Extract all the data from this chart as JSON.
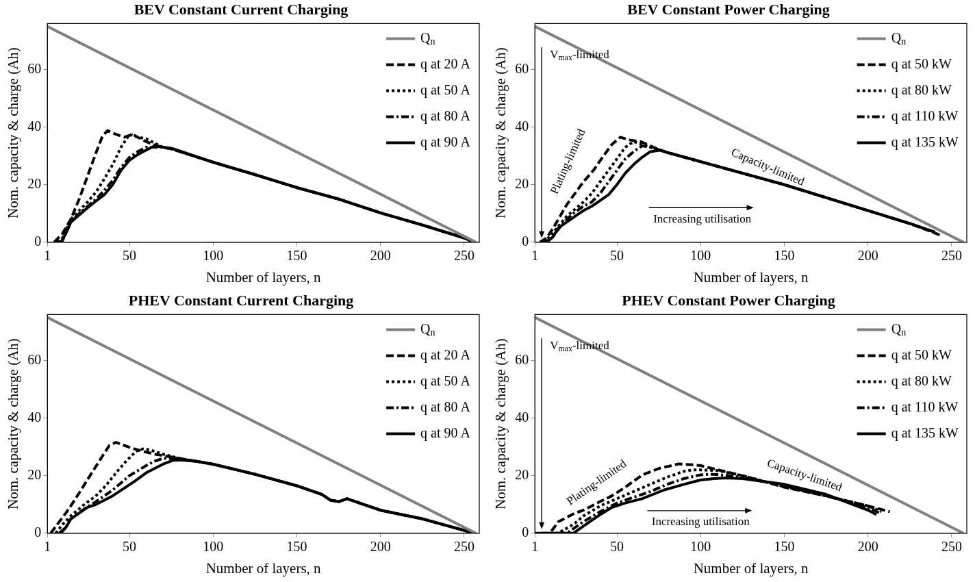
{
  "chart_data": [
    {
      "type": "line",
      "title": "BEV Constant Current Charging",
      "xlabel": "Number of layers, n",
      "ylabel": "Nom. capacity & charge (Ah)",
      "xlim": [
        1,
        259
      ],
      "ylim": [
        0,
        76
      ],
      "xticks": [
        1,
        50,
        100,
        150,
        200,
        250
      ],
      "yticks": [
        0,
        20,
        40,
        60
      ],
      "grid": false,
      "legend": "top right",
      "marker": "none",
      "series": [
        {
          "name": "Q$_{n}$",
          "color": "#808080",
          "line_style": "solid",
          "x": [
            1,
            257
          ],
          "values": [
            75,
            0
          ]
        },
        {
          "name": "q at 20 A",
          "color": "#000000",
          "line_style": "dashed",
          "x": [
            5,
            10,
            15,
            20,
            25,
            30,
            34,
            37,
            42,
            47,
            52,
            58,
            64,
            70,
            75,
            100,
            125,
            150,
            175,
            200,
            225,
            250,
            256
          ],
          "values": [
            0,
            3,
            8,
            15,
            23,
            31,
            37,
            38.8,
            37.5,
            36.5,
            37.5,
            35.5,
            34,
            33,
            32.5,
            27.8,
            23.5,
            19,
            15,
            10.2,
            6,
            1.5,
            0
          ]
        },
        {
          "name": "q at 50 A",
          "color": "#000000",
          "line_style": "dotted",
          "x": [
            7,
            10,
            15,
            20,
            25,
            30,
            35,
            40,
            45,
            50,
            55,
            60,
            65,
            70,
            75,
            100,
            125,
            150,
            175,
            200,
            225,
            250,
            256
          ],
          "values": [
            0,
            1.5,
            8,
            11,
            14,
            17.4,
            22,
            27,
            33,
            37.5,
            36.5,
            36,
            34.5,
            33,
            32.5,
            27.8,
            23.5,
            19,
            15,
            10.2,
            6,
            1.5,
            0
          ]
        },
        {
          "name": "q at 80 A",
          "color": "#000000",
          "line_style": "dashdot",
          "x": [
            8,
            10,
            15,
            20,
            25,
            30,
            35,
            40,
            45,
            50,
            55,
            60,
            65,
            70,
            75,
            100,
            125,
            150,
            175,
            200,
            225,
            250,
            256
          ],
          "values": [
            0,
            0.5,
            7,
            10,
            12.5,
            15,
            18,
            21.5,
            26,
            29.5,
            31.5,
            33,
            33,
            33,
            32.5,
            27.8,
            23.5,
            19,
            15,
            10.2,
            6,
            1.5,
            0
          ]
        },
        {
          "name": "q at 90 A",
          "color": "#000000",
          "line_style": "solid",
          "x": [
            9,
            12,
            15,
            20,
            25,
            30,
            35,
            40,
            45,
            50,
            55,
            60,
            65,
            70,
            75,
            100,
            125,
            150,
            175,
            200,
            225,
            250,
            256
          ],
          "values": [
            0,
            3,
            7,
            9.5,
            12,
            14.3,
            16.5,
            20,
            25,
            28.5,
            30.5,
            32,
            33.5,
            33,
            32.7,
            27.8,
            23.5,
            19,
            15,
            10.2,
            6,
            1.5,
            0
          ]
        }
      ]
    },
    {
      "type": "line",
      "title": "BEV Constant Power Charging",
      "xlabel": "Number of layers, n",
      "ylabel": "Nom. capacity & charge (Ah)",
      "xlim": [
        1,
        259
      ],
      "ylim": [
        0,
        76
      ],
      "xticks": [
        1,
        50,
        100,
        150,
        200,
        250
      ],
      "yticks": [
        0,
        20,
        40,
        60
      ],
      "grid": false,
      "legend": "top right",
      "marker": "none",
      "annotations": [
        "V$_{max}$-limited",
        "Plating-limited",
        "Capacity-limited",
        "Increasing utilisation"
      ],
      "series": [
        {
          "name": "Q$_{n}$",
          "color": "#808080",
          "line_style": "solid",
          "x": [
            1,
            257
          ],
          "values": [
            75,
            0
          ]
        },
        {
          "name": "q at 50 kW",
          "color": "#000000",
          "line_style": "dashed",
          "x": [
            4,
            8,
            12,
            16,
            20,
            25,
            30,
            36,
            42,
            47,
            52,
            58,
            64,
            70,
            76,
            80,
            100,
            125,
            150,
            175,
            200,
            225,
            243
          ],
          "values": [
            0,
            1.5,
            5,
            9,
            13,
            17,
            21,
            25,
            30,
            34,
            36.5,
            35.5,
            35,
            33.5,
            32,
            31.2,
            28,
            24,
            20,
            15.5,
            11,
            6.5,
            2.5
          ]
        },
        {
          "name": "q at 80 kW",
          "color": "#000000",
          "line_style": "dotted",
          "x": [
            6,
            10,
            15,
            20,
            25,
            30,
            35,
            40,
            45,
            50,
            55,
            60,
            65,
            70,
            76,
            80,
            100,
            125,
            150,
            175,
            200,
            225,
            240
          ],
          "values": [
            0,
            2,
            5.5,
            9,
            11.5,
            14,
            17,
            21,
            25,
            29,
            33,
            35,
            34,
            33,
            32,
            31.2,
            28,
            24,
            20,
            15.5,
            11,
            6.5,
            3.5
          ]
        },
        {
          "name": "q at 110 kW",
          "color": "#000000",
          "line_style": "dashdot",
          "x": [
            7,
            10,
            15,
            20,
            25,
            30,
            35,
            40,
            45,
            50,
            55,
            60,
            65,
            70,
            76,
            80,
            100,
            125,
            150,
            175,
            200,
            225,
            240
          ],
          "values": [
            0,
            1,
            4.5,
            8,
            10.5,
            12.5,
            14,
            17,
            21,
            25,
            29,
            31.5,
            33.5,
            33,
            32,
            31.2,
            28,
            24,
            20,
            15.5,
            11,
            6.5,
            3.5
          ]
        },
        {
          "name": "q at 135 kW",
          "color": "#000000",
          "line_style": "solid",
          "x": [
            8,
            12,
            15,
            20,
            25,
            30,
            35,
            40,
            45,
            50,
            55,
            60,
            65,
            70,
            76,
            80,
            100,
            125,
            150,
            175,
            200,
            225,
            240
          ],
          "values": [
            0,
            2,
            5,
            7,
            9,
            11,
            12.5,
            14.5,
            16.5,
            20,
            24,
            27,
            29.5,
            31.5,
            32,
            31.2,
            28,
            24,
            20,
            15.5,
            11,
            6.5,
            3.5
          ]
        }
      ]
    },
    {
      "type": "line",
      "title": "PHEV Constant Current Charging",
      "xlabel": "Number of layers, n",
      "ylabel": "Nom. capacity & charge (Ah)",
      "xlim": [
        1,
        259
      ],
      "ylim": [
        0,
        76
      ],
      "xticks": [
        1,
        50,
        100,
        150,
        200,
        250
      ],
      "yticks": [
        0,
        20,
        40,
        60
      ],
      "grid": false,
      "legend": "top right",
      "marker": "none",
      "series": [
        {
          "name": "Q$_{n}$",
          "color": "#808080",
          "line_style": "solid",
          "x": [
            1,
            257
          ],
          "values": [
            75,
            0
          ]
        },
        {
          "name": "q at 20 A",
          "color": "#000000",
          "line_style": "dashed",
          "x": [
            3,
            8,
            12,
            15,
            20,
            27,
            33,
            38,
            42,
            47,
            52,
            58,
            65,
            75,
            85,
            100,
            125,
            150,
            165,
            170,
            175,
            180,
            185,
            200,
            225,
            250,
            256
          ],
          "values": [
            0,
            3.9,
            7,
            9.5,
            14,
            20.5,
            26,
            30.5,
            31.6,
            30.5,
            29.5,
            28.5,
            27.5,
            26.5,
            25.5,
            24,
            20.5,
            16.5,
            13.5,
            11.5,
            11,
            12,
            11,
            8,
            5,
            1,
            0
          ]
        },
        {
          "name": "q at 50 A",
          "color": "#000000",
          "line_style": "dotted",
          "x": [
            6,
            10,
            15,
            22,
            30,
            36,
            42,
            48,
            54,
            58,
            62,
            70,
            80,
            90,
            100,
            125,
            150,
            165,
            170,
            175,
            180,
            185,
            200,
            225,
            250,
            256
          ],
          "values": [
            0,
            3,
            6,
            9.5,
            13,
            16.6,
            21,
            25,
            28.5,
            29.3,
            29,
            27.5,
            26,
            25,
            24,
            20.5,
            16.5,
            13.5,
            11.5,
            11,
            12,
            11,
            8,
            5,
            1,
            0
          ]
        },
        {
          "name": "q at 80 A",
          "color": "#000000",
          "line_style": "dashdot",
          "x": [
            8,
            12,
            15,
            22,
            30,
            40,
            50,
            60,
            65,
            70,
            75,
            80,
            90,
            100,
            125,
            150,
            165,
            170,
            175,
            180,
            185,
            200,
            225,
            250,
            256
          ],
          "values": [
            0,
            2,
            5,
            8,
            11,
            15,
            20,
            23.5,
            25,
            26,
            26,
            25.8,
            25,
            24,
            20.5,
            16.5,
            13.5,
            11.5,
            11,
            12,
            11,
            8,
            5,
            1,
            0
          ]
        },
        {
          "name": "q at 90 A",
          "color": "#000000",
          "line_style": "solid",
          "x": [
            9,
            12,
            15,
            20,
            25,
            30,
            40,
            53,
            60,
            70,
            76,
            80,
            90,
            100,
            125,
            150,
            165,
            170,
            175,
            180,
            185,
            200,
            225,
            250,
            256
          ],
          "values": [
            0,
            2,
            5,
            7,
            9,
            10,
            13,
            18,
            21,
            24,
            25.3,
            25.5,
            25,
            24,
            20.5,
            16.5,
            13.5,
            11.5,
            11,
            12,
            11,
            8,
            5,
            1,
            0
          ]
        }
      ]
    },
    {
      "type": "line",
      "title": "PHEV Constant Power Charging",
      "xlabel": "Number of layers, n",
      "ylabel": "Nom. capacity & charge (Ah)",
      "xlim": [
        1,
        259
      ],
      "ylim": [
        0,
        76
      ],
      "xticks": [
        1,
        50,
        100,
        150,
        200,
        250
      ],
      "yticks": [
        0,
        20,
        40,
        60
      ],
      "grid": false,
      "legend": "top right",
      "marker": "none",
      "annotations": [
        "V$_{max}$-limited",
        "Plating-limited",
        "Capacity-limited",
        "Increasing utilisation"
      ],
      "series": [
        {
          "name": "Q$_{n}$",
          "color": "#808080",
          "line_style": "solid",
          "x": [
            1,
            257
          ],
          "values": [
            75,
            0
          ]
        },
        {
          "name": "q at 50 kW",
          "color": "#000000",
          "line_style": "dashed",
          "x": [
            5,
            10,
            15,
            20,
            25,
            30,
            40,
            47,
            55,
            65,
            75,
            87,
            95,
            100,
            125,
            150,
            175,
            200,
            213
          ],
          "values": [
            0,
            0,
            4,
            5.5,
            7,
            8,
            11,
            13,
            16,
            20.2,
            22.5,
            24.1,
            23.8,
            23.5,
            20,
            16,
            13,
            9.5,
            7.5
          ]
        },
        {
          "name": "q at 80 kW",
          "color": "#000000",
          "line_style": "dotted",
          "x": [
            10,
            14,
            18,
            25,
            30,
            40,
            50,
            60,
            70,
            80,
            90,
            95,
            100,
            110,
            125,
            150,
            175,
            200,
            208
          ],
          "values": [
            0,
            0,
            1,
            3.5,
            6,
            9.5,
            12,
            14.5,
            17,
            19.5,
            21.5,
            22,
            22,
            21.8,
            20,
            16.2,
            13,
            9.5,
            7.5
          ]
        },
        {
          "name": "q at 110 kW",
          "color": "#000000",
          "line_style": "dashdot",
          "x": [
            15,
            20,
            25,
            30,
            40,
            50,
            60,
            70,
            80,
            90,
            100,
            105,
            110,
            125,
            150,
            175,
            200,
            207
          ],
          "values": [
            0,
            0,
            2,
            4,
            7.5,
            10.5,
            12.5,
            14.5,
            17,
            19,
            20.3,
            20.5,
            20.4,
            19.5,
            16.5,
            13,
            9,
            7
          ]
        },
        {
          "name": "q at 135 kW",
          "color": "#000000",
          "line_style": "solid",
          "x": [
            1,
            10,
            20,
            24,
            30,
            40,
            47,
            55,
            65,
            78,
            90,
            100,
            108,
            115,
            125,
            150,
            175,
            200,
            205
          ],
          "values": [
            0,
            0,
            0,
            0,
            2.5,
            6.5,
            9,
            10.5,
            12,
            15,
            17,
            18.5,
            19,
            19.2,
            19,
            17,
            13.5,
            8,
            6.5
          ]
        }
      ]
    }
  ]
}
